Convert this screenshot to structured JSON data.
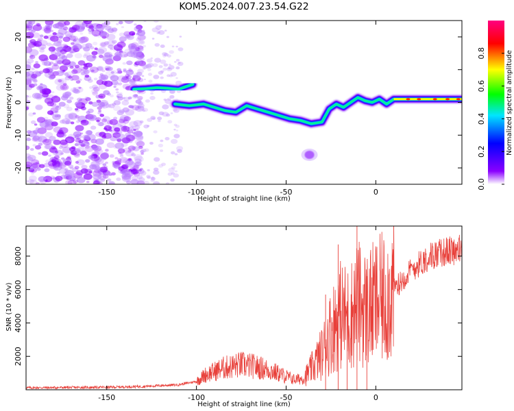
{
  "figure": {
    "title": "KOM5.2024.007.23.54.G22"
  },
  "chart_data": [
    {
      "type": "heatmap",
      "name": "spectrogram",
      "xlabel": "Height of straight line (km)",
      "ylabel": "Frequency (Hz)",
      "xlim": [
        -195,
        48
      ],
      "ylim": [
        -25,
        25
      ],
      "x_ticks": [
        -150,
        -100,
        -50,
        0
      ],
      "y_ticks": [
        -20,
        -10,
        0,
        10,
        20
      ],
      "colorbar": {
        "label": "Normalized spectral amplitude",
        "range": [
          0,
          1
        ],
        "ticks": [
          "0.0",
          "0.2",
          "0.4",
          "0.6",
          "0.8"
        ],
        "colormap": [
          "#ffffff",
          "#8a00ff",
          "#0000ff",
          "#00e5ff",
          "#00ff00",
          "#ffff00",
          "#ff0000",
          "#ff0080"
        ]
      },
      "ridges": [
        {
          "x": [
            -135,
            -128,
            -122,
            -116,
            -110,
            -106,
            -102
          ],
          "y": [
            4,
            4.2,
            4.5,
            4.3,
            4,
            4.8,
            5.5
          ]
        },
        {
          "x": [
            -112,
            -104,
            -96,
            -90,
            -84,
            -78,
            -72,
            -66,
            -60,
            -54,
            -48,
            -42,
            -36,
            -30,
            -26,
            -22,
            -18,
            -14,
            -10,
            -6,
            -2,
            2,
            6,
            10,
            20,
            30,
            40,
            48
          ],
          "y": [
            -0.5,
            -1,
            -0.5,
            -1.5,
            -2.5,
            -3,
            -1,
            -2,
            -3,
            -4,
            -5,
            -5.5,
            -6.5,
            -6,
            -2,
            -0.5,
            -1.5,
            0,
            1.5,
            0.5,
            0,
            1,
            -0.5,
            1,
            1,
            1,
            1,
            1
          ]
        }
      ],
      "noise_region_x": [
        -195,
        -130
      ],
      "blob": {
        "x": -37,
        "y": -16
      }
    },
    {
      "type": "line",
      "name": "snr",
      "xlabel": "Height of straight line (km)",
      "ylabel": "SNR (10 * v/v)",
      "xlim": [
        -195,
        48
      ],
      "ylim": [
        0,
        9800
      ],
      "x_ticks": [
        -150,
        -100,
        -50,
        0
      ],
      "y_ticks": [
        2000,
        4000,
        6000,
        8000
      ],
      "color": "#e8403a",
      "envelope": {
        "x": [
          -195,
          -150,
          -130,
          -110,
          -100,
          -95,
          -85,
          -75,
          -68,
          -60,
          -50,
          -45,
          -40,
          -35,
          -30,
          -25,
          -20,
          -15,
          -10,
          -5,
          0,
          5,
          10,
          20,
          30,
          40,
          48
        ],
        "y": [
          120,
          150,
          200,
          300,
          500,
          900,
          1300,
          1500,
          1400,
          1200,
          800,
          600,
          700,
          1400,
          2200,
          3500,
          4500,
          4300,
          5200,
          4800,
          5200,
          5500,
          6000,
          7200,
          8000,
          8300,
          8400
        ]
      },
      "spikes": [
        {
          "x": -21,
          "y": 8700
        },
        {
          "x": -10.5,
          "y": 9800
        },
        {
          "x": -28,
          "y": 5700
        },
        {
          "x": -16,
          "y": 5000
        },
        {
          "x": -5,
          "y": 6800
        }
      ]
    }
  ]
}
